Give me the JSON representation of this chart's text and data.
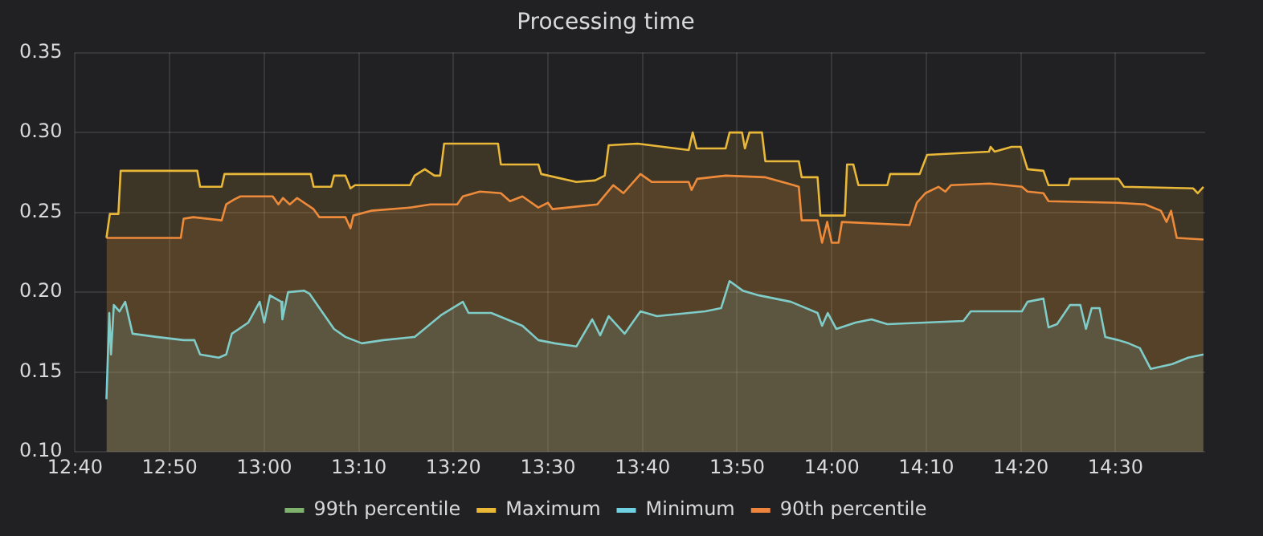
{
  "chart_data": {
    "type": "area",
    "title": "Processing time",
    "xlim": [
      12.6667,
      14.658
    ],
    "xticks": [
      {
        "value": 12.6667,
        "label": "12:40"
      },
      {
        "value": 12.8333,
        "label": "12:50"
      },
      {
        "value": 13,
        "label": "13:00"
      },
      {
        "value": 13.1667,
        "label": "13:10"
      },
      {
        "value": 13.3333,
        "label": "13:20"
      },
      {
        "value": 13.5,
        "label": "13:30"
      },
      {
        "value": 13.6667,
        "label": "13:40"
      },
      {
        "value": 13.8333,
        "label": "13:50"
      },
      {
        "value": 14,
        "label": "14:00"
      },
      {
        "value": 14.1667,
        "label": "14:10"
      },
      {
        "value": 14.3333,
        "label": "14:20"
      },
      {
        "value": 14.5,
        "label": "14:30"
      }
    ],
    "ylim": [
      0.1,
      0.35
    ],
    "yticks": [
      {
        "value": 0.1,
        "label": "0.10"
      },
      {
        "value": 0.15,
        "label": "0.15"
      },
      {
        "value": 0.2,
        "label": "0.20"
      },
      {
        "value": 0.25,
        "label": "0.25"
      },
      {
        "value": 0.3,
        "label": "0.30"
      },
      {
        "value": 0.35,
        "label": "0.35"
      }
    ],
    "grid": true,
    "legend": "bottom",
    "marker": "none",
    "line_style": "solid",
    "series": [
      {
        "name": "99th percentile",
        "color": "#7eb26d"
      },
      {
        "name": "Maximum",
        "color": "#eab839",
        "x": [
          12.722,
          12.728,
          12.743,
          12.747,
          12.882,
          12.887,
          12.925,
          12.93,
          13.082,
          13.087,
          13.118,
          13.123,
          13.143,
          13.152,
          13.16,
          13.257,
          13.265,
          13.283,
          13.3,
          13.31,
          13.317,
          13.412,
          13.417,
          13.483,
          13.488,
          13.55,
          13.583,
          13.6,
          13.607,
          13.658,
          13.748,
          13.755,
          13.762,
          13.813,
          13.82,
          13.842,
          13.847,
          13.855,
          13.877,
          13.883,
          13.942,
          13.947,
          13.975,
          13.98,
          14.023,
          14.027,
          14.038,
          14.047,
          14.098,
          14.103,
          14.155,
          14.168,
          14.277,
          14.28,
          14.287,
          14.317,
          14.333,
          14.345,
          14.373,
          14.382,
          14.417,
          14.42,
          14.505,
          14.515,
          14.637,
          14.645,
          14.655
        ],
        "values": [
          0.234,
          0.249,
          0.249,
          0.276,
          0.276,
          0.266,
          0.266,
          0.274,
          0.274,
          0.266,
          0.266,
          0.273,
          0.273,
          0.265,
          0.267,
          0.267,
          0.273,
          0.277,
          0.273,
          0.273,
          0.293,
          0.293,
          0.28,
          0.28,
          0.274,
          0.269,
          0.27,
          0.273,
          0.292,
          0.293,
          0.289,
          0.3,
          0.29,
          0.29,
          0.3,
          0.3,
          0.29,
          0.3,
          0.3,
          0.282,
          0.282,
          0.272,
          0.272,
          0.248,
          0.248,
          0.28,
          0.28,
          0.267,
          0.267,
          0.274,
          0.274,
          0.286,
          0.288,
          0.291,
          0.288,
          0.291,
          0.291,
          0.277,
          0.276,
          0.267,
          0.267,
          0.271,
          0.271,
          0.266,
          0.265,
          0.262,
          0.266
        ]
      },
      {
        "name": "Minimum",
        "color": "#6ed0e0",
        "x": [
          12.722,
          12.727,
          12.73,
          12.735,
          12.745,
          12.755,
          12.768,
          12.81,
          12.858,
          12.877,
          12.887,
          12.92,
          12.933,
          12.943,
          12.972,
          12.992,
          13,
          13.01,
          13.03,
          13.032,
          13.042,
          13.07,
          13.08,
          13.123,
          13.143,
          13.172,
          13.21,
          13.265,
          13.313,
          13.35,
          13.36,
          13.4,
          13.455,
          13.483,
          13.512,
          13.55,
          13.578,
          13.592,
          13.607,
          13.635,
          13.663,
          13.692,
          13.777,
          13.805,
          13.82,
          13.843,
          13.872,
          13.928,
          13.975,
          13.983,
          13.993,
          14.008,
          14.042,
          14.07,
          14.098,
          14.232,
          14.245,
          14.335,
          14.345,
          14.373,
          14.382,
          14.397,
          14.42,
          14.438,
          14.448,
          14.458,
          14.472,
          14.482,
          14.505,
          14.523,
          14.543,
          14.562,
          14.6,
          14.628,
          14.655
        ],
        "values": [
          0.133,
          0.187,
          0.161,
          0.192,
          0.188,
          0.194,
          0.174,
          0.172,
          0.17,
          0.17,
          0.161,
          0.159,
          0.161,
          0.174,
          0.181,
          0.194,
          0.181,
          0.198,
          0.194,
          0.183,
          0.2,
          0.201,
          0.199,
          0.177,
          0.172,
          0.168,
          0.17,
          0.172,
          0.186,
          0.194,
          0.187,
          0.187,
          0.179,
          0.17,
          0.168,
          0.166,
          0.183,
          0.173,
          0.185,
          0.174,
          0.188,
          0.185,
          0.188,
          0.19,
          0.207,
          0.201,
          0.198,
          0.194,
          0.187,
          0.179,
          0.187,
          0.177,
          0.181,
          0.183,
          0.18,
          0.182,
          0.188,
          0.188,
          0.194,
          0.196,
          0.178,
          0.18,
          0.192,
          0.192,
          0.177,
          0.19,
          0.19,
          0.172,
          0.17,
          0.168,
          0.165,
          0.152,
          0.155,
          0.159,
          0.161
        ]
      },
      {
        "name": "90th percentile",
        "color": "#ef843c",
        "x": [
          12.722,
          12.853,
          12.858,
          12.875,
          12.925,
          12.933,
          12.947,
          12.958,
          13.015,
          13.025,
          13.033,
          13.045,
          13.058,
          13.087,
          13.097,
          13.143,
          13.152,
          13.157,
          13.188,
          13.257,
          13.293,
          13.34,
          13.35,
          13.38,
          13.417,
          13.433,
          13.455,
          13.483,
          13.5,
          13.508,
          13.587,
          13.615,
          13.633,
          13.663,
          13.683,
          13.748,
          13.753,
          13.763,
          13.813,
          13.882,
          13.933,
          13.942,
          13.947,
          13.975,
          13.983,
          13.992,
          14,
          14.012,
          14.018,
          14.137,
          14.15,
          14.165,
          14.188,
          14.2,
          14.21,
          14.278,
          14.335,
          14.345,
          14.373,
          14.382,
          14.505,
          14.552,
          14.58,
          14.59,
          14.598,
          14.608,
          14.655
        ],
        "values": [
          0.234,
          0.234,
          0.246,
          0.247,
          0.245,
          0.255,
          0.258,
          0.26,
          0.26,
          0.255,
          0.259,
          0.255,
          0.259,
          0.252,
          0.247,
          0.247,
          0.24,
          0.248,
          0.251,
          0.253,
          0.255,
          0.255,
          0.26,
          0.263,
          0.262,
          0.257,
          0.26,
          0.253,
          0.256,
          0.252,
          0.255,
          0.267,
          0.262,
          0.274,
          0.269,
          0.269,
          0.264,
          0.271,
          0.273,
          0.272,
          0.267,
          0.266,
          0.245,
          0.245,
          0.231,
          0.244,
          0.231,
          0.231,
          0.244,
          0.242,
          0.256,
          0.262,
          0.266,
          0.263,
          0.267,
          0.268,
          0.266,
          0.263,
          0.262,
          0.257,
          0.256,
          0.255,
          0.251,
          0.244,
          0.251,
          0.234,
          0.233
        ]
      }
    ]
  }
}
